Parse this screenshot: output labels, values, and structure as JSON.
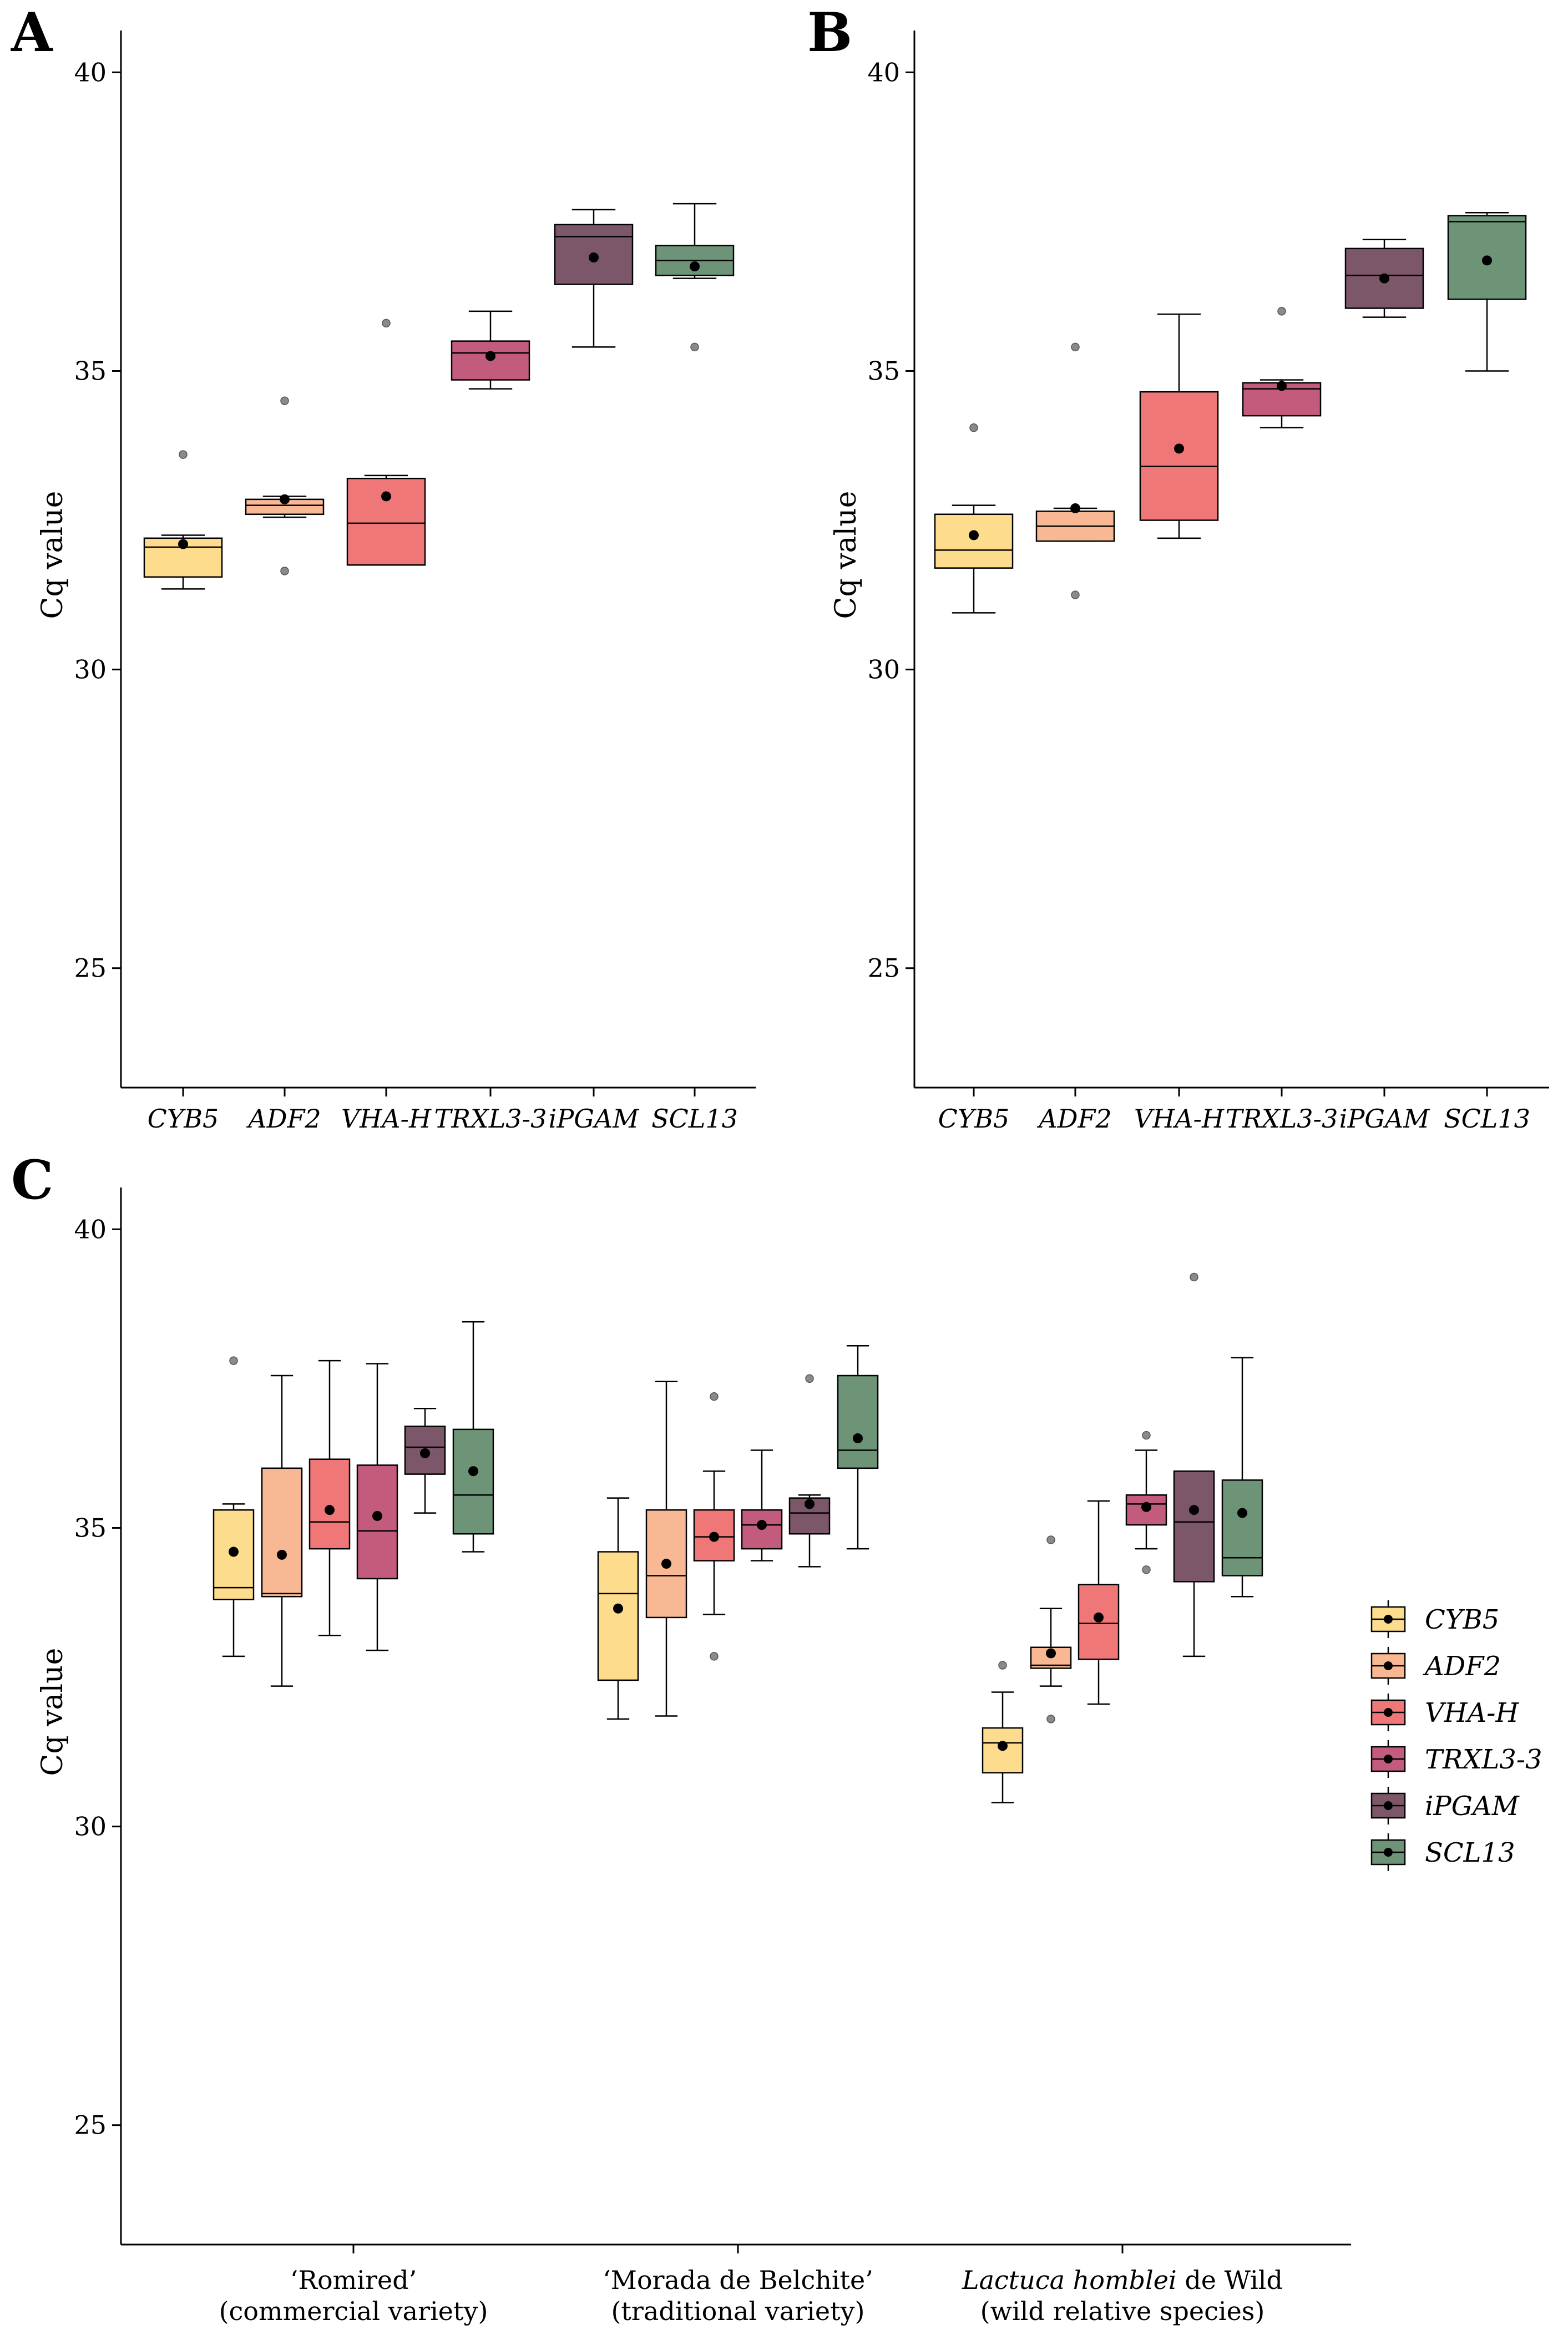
{
  "figure": {
    "legend": {
      "items": [
        {
          "name": "CYB5",
          "color": "#FDDC8D"
        },
        {
          "name": "ADF2",
          "color": "#F9B894"
        },
        {
          "name": "VHA-H",
          "color": "#EF7777"
        },
        {
          "name": "TRXL3-3",
          "color": "#C35B7C"
        },
        {
          "name": "iPGAM",
          "color": "#7C5669"
        },
        {
          "name": "SCL13",
          "color": "#6E9478"
        }
      ]
    }
  },
  "chart_data": [
    {
      "panel": "A",
      "type": "box",
      "ylabel": "Cq value",
      "ylim": [
        23,
        40.7
      ],
      "yticks": [
        25,
        30,
        35,
        40
      ],
      "categories": [
        "CYB5",
        "ADF2",
        "VHA-H",
        "TRXL3-3",
        "iPGAM",
        "SCL13"
      ],
      "boxes": [
        {
          "gene": "CYB5",
          "color": "#FDDC8D",
          "wlo": 31.35,
          "q1": 31.55,
          "med": 32.05,
          "q3": 32.2,
          "whi": 32.25,
          "mean": 32.1,
          "outliers": [
            33.6
          ]
        },
        {
          "gene": "ADF2",
          "color": "#F9B894",
          "wlo": 32.55,
          "q1": 32.6,
          "med": 32.75,
          "q3": 32.85,
          "whi": 32.9,
          "mean": 32.85,
          "outliers": [
            34.5,
            31.65
          ]
        },
        {
          "gene": "VHA-H",
          "color": "#EF7777",
          "wlo": 31.75,
          "q1": 31.75,
          "med": 32.45,
          "q3": 33.2,
          "whi": 33.25,
          "mean": 32.9,
          "outliers": [
            35.8
          ]
        },
        {
          "gene": "TRXL3-3",
          "color": "#C35B7C",
          "wlo": 34.7,
          "q1": 34.85,
          "med": 35.3,
          "q3": 35.5,
          "whi": 36.0,
          "mean": 35.25,
          "outliers": []
        },
        {
          "gene": "iPGAM",
          "color": "#7C5669",
          "wlo": 35.4,
          "q1": 36.45,
          "med": 37.25,
          "q3": 37.45,
          "whi": 37.7,
          "mean": 36.9,
          "outliers": []
        },
        {
          "gene": "SCL13",
          "color": "#6E9478",
          "wlo": 36.55,
          "q1": 36.6,
          "med": 36.85,
          "q3": 37.1,
          "whi": 37.8,
          "mean": 36.75,
          "outliers": [
            35.4
          ]
        }
      ]
    },
    {
      "panel": "B",
      "type": "box",
      "ylabel": "Cq value",
      "ylim": [
        23,
        40.7
      ],
      "yticks": [
        25,
        30,
        35,
        40
      ],
      "categories": [
        "CYB5",
        "ADF2",
        "VHA-H",
        "TRXL3-3",
        "iPGAM",
        "SCL13"
      ],
      "boxes": [
        {
          "gene": "CYB5",
          "color": "#FDDC8D",
          "wlo": 30.95,
          "q1": 31.7,
          "med": 32.0,
          "q3": 32.6,
          "whi": 32.75,
          "mean": 32.25,
          "outliers": [
            34.05
          ]
        },
        {
          "gene": "ADF2",
          "color": "#F9B894",
          "wlo": 32.15,
          "q1": 32.15,
          "med": 32.4,
          "q3": 32.65,
          "whi": 32.7,
          "mean": 32.7,
          "outliers": [
            35.4,
            31.25
          ]
        },
        {
          "gene": "VHA-H",
          "color": "#EF7777",
          "wlo": 32.2,
          "q1": 32.5,
          "med": 33.4,
          "q3": 34.65,
          "whi": 35.95,
          "mean": 33.7,
          "outliers": []
        },
        {
          "gene": "TRXL3-3",
          "color": "#C35B7C",
          "wlo": 34.05,
          "q1": 34.25,
          "med": 34.7,
          "q3": 34.8,
          "whi": 34.85,
          "mean": 34.75,
          "outliers": [
            36.0
          ]
        },
        {
          "gene": "iPGAM",
          "color": "#7C5669",
          "wlo": 35.9,
          "q1": 36.05,
          "med": 36.6,
          "q3": 37.05,
          "whi": 37.2,
          "mean": 36.55,
          "outliers": []
        },
        {
          "gene": "SCL13",
          "color": "#6E9478",
          "wlo": 35.0,
          "q1": 36.2,
          "med": 37.5,
          "q3": 37.6,
          "whi": 37.65,
          "mean": 36.85,
          "outliers": []
        }
      ]
    },
    {
      "panel": "C",
      "type": "box",
      "ylabel": "Cq value",
      "ylim": [
        23,
        40.7
      ],
      "yticks": [
        25,
        30,
        35,
        40
      ],
      "groups": [
        {
          "line1": "‘Romired’",
          "line2": "(commercial variety)",
          "italic_part": "",
          "boxes": [
            {
              "gene": "CYB5",
              "color": "#FDDC8D",
              "wlo": 32.85,
              "q1": 33.8,
              "med": 34.0,
              "q3": 35.3,
              "whi": 35.4,
              "mean": 34.6,
              "outliers": [
                37.8
              ]
            },
            {
              "gene": "ADF2",
              "color": "#F9B894",
              "wlo": 32.35,
              "q1": 33.85,
              "med": 33.9,
              "q3": 36.0,
              "whi": 37.55,
              "mean": 34.55,
              "outliers": []
            },
            {
              "gene": "VHA-H",
              "color": "#EF7777",
              "wlo": 33.2,
              "q1": 34.65,
              "med": 35.1,
              "q3": 36.15,
              "whi": 37.8,
              "mean": 35.3,
              "outliers": []
            },
            {
              "gene": "TRXL3-3",
              "color": "#C35B7C",
              "wlo": 32.95,
              "q1": 34.15,
              "med": 34.95,
              "q3": 36.05,
              "whi": 37.75,
              "mean": 35.2,
              "outliers": []
            },
            {
              "gene": "iPGAM",
              "color": "#7C5669",
              "wlo": 35.25,
              "q1": 35.9,
              "med": 36.35,
              "q3": 36.7,
              "whi": 37.0,
              "mean": 36.25,
              "outliers": []
            },
            {
              "gene": "SCL13",
              "color": "#6E9478",
              "wlo": 34.6,
              "q1": 34.9,
              "med": 35.55,
              "q3": 36.65,
              "whi": 38.45,
              "mean": 35.95,
              "outliers": []
            }
          ]
        },
        {
          "line1": "‘Morada de Belchite’",
          "line2": "(traditional variety)",
          "italic_part": "",
          "boxes": [
            {
              "gene": "CYB5",
              "color": "#FDDC8D",
              "wlo": 31.8,
              "q1": 32.45,
              "med": 33.9,
              "q3": 34.6,
              "whi": 35.5,
              "mean": 33.65,
              "outliers": []
            },
            {
              "gene": "ADF2",
              "color": "#F9B894",
              "wlo": 31.85,
              "q1": 33.5,
              "med": 34.2,
              "q3": 35.3,
              "whi": 37.45,
              "mean": 34.4,
              "outliers": []
            },
            {
              "gene": "VHA-H",
              "color": "#EF7777",
              "wlo": 33.55,
              "q1": 34.45,
              "med": 34.85,
              "q3": 35.3,
              "whi": 35.95,
              "mean": 34.85,
              "outliers": [
                37.2,
                32.85
              ]
            },
            {
              "gene": "TRXL3-3",
              "color": "#C35B7C",
              "wlo": 34.45,
              "q1": 34.65,
              "med": 35.05,
              "q3": 35.3,
              "whi": 36.3,
              "mean": 35.05,
              "outliers": []
            },
            {
              "gene": "iPGAM",
              "color": "#7C5669",
              "wlo": 34.35,
              "q1": 34.9,
              "med": 35.25,
              "q3": 35.5,
              "whi": 35.55,
              "mean": 35.4,
              "outliers": [
                37.5
              ]
            },
            {
              "gene": "SCL13",
              "color": "#6E9478",
              "wlo": 34.65,
              "q1": 36.0,
              "med": 36.3,
              "q3": 37.55,
              "whi": 38.05,
              "mean": 36.5,
              "outliers": []
            }
          ]
        },
        {
          "line1": "de Wild",
          "line1_prefix": "Lactuca homblei",
          "line2": "(wild relative species)",
          "italic_part": "Lactuca homblei",
          "boxes": [
            {
              "gene": "CYB5",
              "color": "#FDDC8D",
              "wlo": 30.4,
              "q1": 30.9,
              "med": 31.4,
              "q3": 31.65,
              "whi": 32.25,
              "mean": 31.35,
              "outliers": [
                32.7
              ]
            },
            {
              "gene": "ADF2",
              "color": "#F9B894",
              "wlo": 32.35,
              "q1": 32.65,
              "med": 32.7,
              "q3": 33.0,
              "whi": 33.65,
              "mean": 32.9,
              "outliers": [
                34.8,
                31.8
              ]
            },
            {
              "gene": "VHA-H",
              "color": "#EF7777",
              "wlo": 32.05,
              "q1": 32.8,
              "med": 33.4,
              "q3": 34.05,
              "whi": 35.45,
              "mean": 33.5,
              "outliers": []
            },
            {
              "gene": "TRXL3-3",
              "color": "#C35B7C",
              "wlo": 34.65,
              "q1": 35.05,
              "med": 35.4,
              "q3": 35.55,
              "whi": 36.3,
              "mean": 35.35,
              "outliers": [
                36.55,
                34.3
              ]
            },
            {
              "gene": "iPGAM",
              "color": "#7C5669",
              "wlo": 32.85,
              "q1": 34.1,
              "med": 35.1,
              "q3": 35.95,
              "whi": 35.95,
              "mean": 35.3,
              "outliers": [
                39.2
              ]
            },
            {
              "gene": "SCL13",
              "color": "#6E9478",
              "wlo": 33.85,
              "q1": 34.2,
              "med": 34.5,
              "q3": 35.8,
              "whi": 37.85,
              "mean": 35.25,
              "outliers": []
            }
          ]
        }
      ]
    }
  ]
}
